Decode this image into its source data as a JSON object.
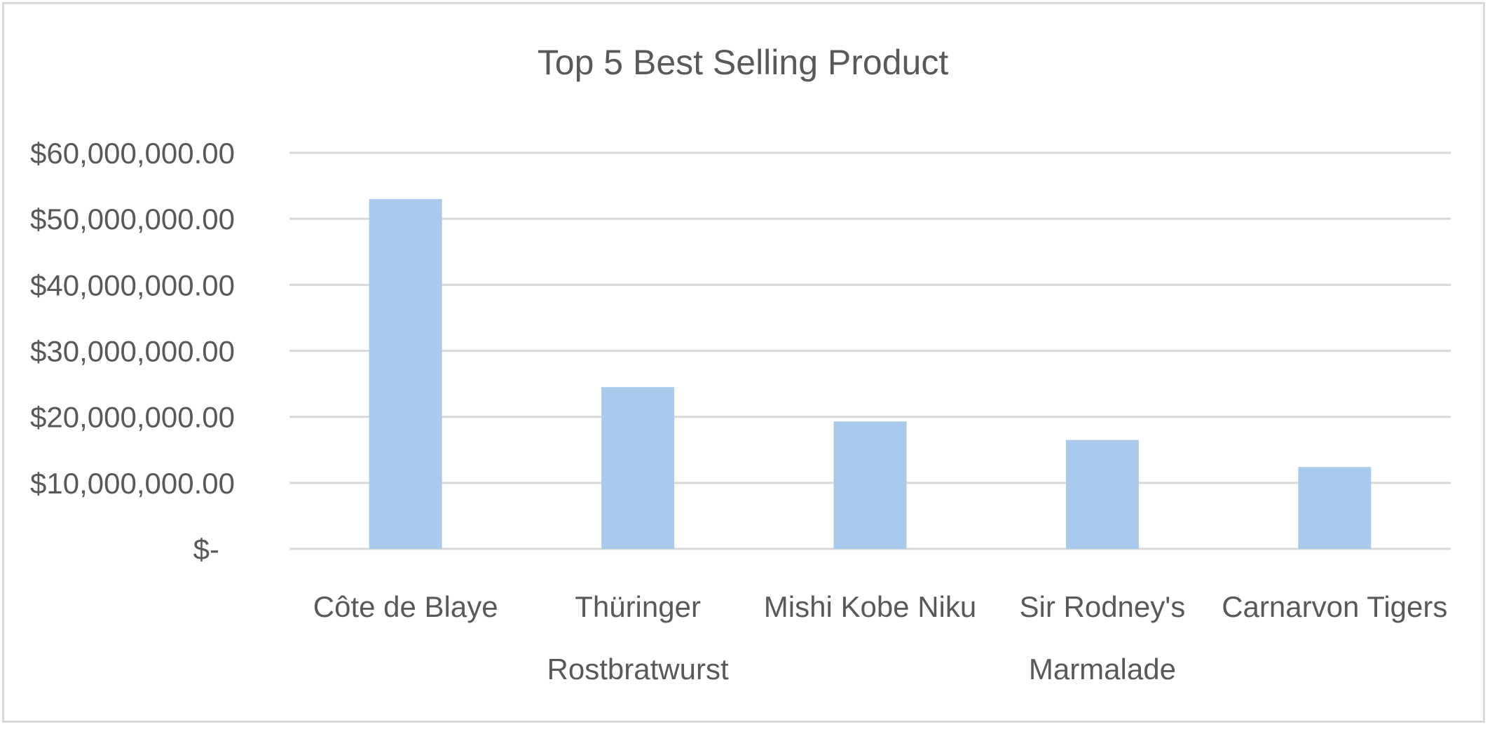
{
  "chart_data": {
    "type": "bar",
    "title": "Top 5 Best Selling Product",
    "xlabel": "",
    "ylabel": "",
    "categories": [
      [
        "Côte de Blaye"
      ],
      [
        "Thüringer",
        "Rostbratwurst"
      ],
      [
        "Mishi Kobe Niku"
      ],
      [
        "Sir Rodney's",
        "Marmalade"
      ],
      [
        "Carnarvon Tigers"
      ]
    ],
    "values": [
      53000000,
      24500000,
      19300000,
      16500000,
      12400000
    ],
    "ylim": [
      0,
      60000000
    ],
    "y_ticks": [
      {
        "value": 0,
        "label": "$-"
      },
      {
        "value": 10000000,
        "label": "$10,000,000.00"
      },
      {
        "value": 20000000,
        "label": "$20,000,000.00"
      },
      {
        "value": 30000000,
        "label": "$30,000,000.00"
      },
      {
        "value": 40000000,
        "label": "$40,000,000.00"
      },
      {
        "value": 50000000,
        "label": "$50,000,000.00"
      },
      {
        "value": 60000000,
        "label": "$60,000,000.00"
      }
    ],
    "grid": true,
    "legend": "none",
    "bar_color": "#a9caec",
    "gridline_color": "#d9d9d9",
    "text_color": "#595959"
  }
}
